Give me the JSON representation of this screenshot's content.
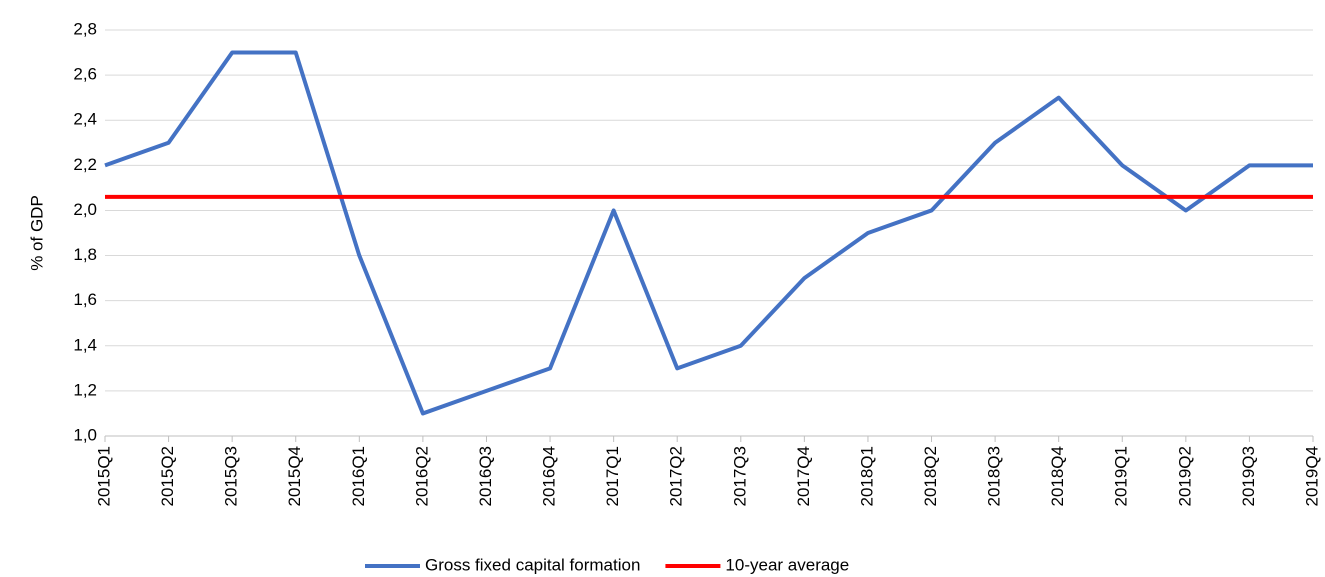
{
  "chart_data": {
    "type": "line",
    "y_label": "% of GDP",
    "categories": [
      "2015Q1",
      "2015Q2",
      "2015Q3",
      "2015Q4",
      "2016Q1",
      "2016Q2",
      "2016Q3",
      "2016Q4",
      "2017Q1",
      "2017Q2",
      "2017Q3",
      "2017Q4",
      "2018Q1",
      "2018Q2",
      "2018Q3",
      "2018Q4",
      "2019Q1",
      "2019Q2",
      "2019Q3",
      "2019Q4"
    ],
    "series": [
      {
        "name": "Gross fixed capital formation",
        "color": "#4472c4",
        "values": [
          2.2,
          2.3,
          2.7,
          2.7,
          1.8,
          1.1,
          1.2,
          1.3,
          2.0,
          1.3,
          1.4,
          1.7,
          1.9,
          2.0,
          2.3,
          2.5,
          2.2,
          2.0,
          2.2,
          2.2
        ]
      },
      {
        "name": "10-year average",
        "color": "#ff0000",
        "values": [
          2.06,
          2.06,
          2.06,
          2.06,
          2.06,
          2.06,
          2.06,
          2.06,
          2.06,
          2.06,
          2.06,
          2.06,
          2.06,
          2.06,
          2.06,
          2.06,
          2.06,
          2.06,
          2.06,
          2.06
        ]
      }
    ],
    "ylim": [
      1.0,
      2.8
    ],
    "yticks": [
      {
        "value": 1.0,
        "label": "1,0"
      },
      {
        "value": 1.2,
        "label": "1,2"
      },
      {
        "value": 1.4,
        "label": "1,4"
      },
      {
        "value": 1.6,
        "label": "1,6"
      },
      {
        "value": 1.8,
        "label": "1,8"
      },
      {
        "value": 2.0,
        "label": "2,0"
      },
      {
        "value": 2.2,
        "label": "2,2"
      },
      {
        "value": 2.4,
        "label": "2,4"
      },
      {
        "value": 2.6,
        "label": "2,6"
      },
      {
        "value": 2.8,
        "label": "2,8"
      }
    ],
    "grid": true,
    "legend": "bottom"
  }
}
